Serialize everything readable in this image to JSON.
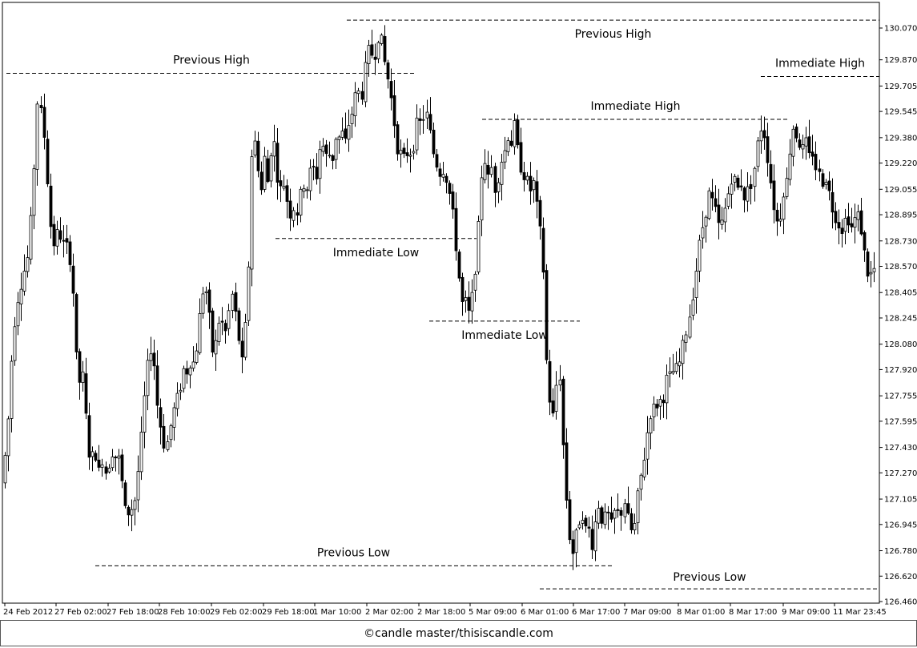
{
  "footer": {
    "copyright": "©candle master/thisiscandle.com"
  },
  "chart_data": {
    "type": "candlestick",
    "ylim": [
      126.4,
      130.14
    ],
    "y_ticks": [
      "130.070",
      "129.870",
      "129.705",
      "129.545",
      "129.380",
      "129.220",
      "129.055",
      "128.895",
      "128.730",
      "128.570",
      "128.405",
      "128.245",
      "128.080",
      "127.920",
      "127.755",
      "127.595",
      "127.430",
      "127.270",
      "127.105",
      "126.945",
      "126.780",
      "126.620",
      "126.460"
    ],
    "x_ticks": [
      "24 Feb 2012",
      "27 Feb 02:00",
      "27 Feb 18:00",
      "28 Feb 10:00",
      "29 Feb 02:00",
      "29 Feb 18:00",
      "1 Mar 10:00",
      "2 Mar 02:00",
      "2 Mar 18:00",
      "5 Mar 09:00",
      "6 Mar 01:00",
      "6 Mar 17:00",
      "7 Mar 09:00",
      "8 Mar 01:00",
      "8 Mar 17:00",
      "9 Mar 09:00",
      "11 Mar 23:45"
    ],
    "levels": [
      {
        "label": "Previous High",
        "value": 129.785,
        "x_from": "24 Feb 2012",
        "x_to": "2 Mar 18:00"
      },
      {
        "label": "Previous High",
        "value": 130.12,
        "x_from": "2 Mar 02:00",
        "x_to": "11 Mar 23:45"
      },
      {
        "label": "Immediate High",
        "value": 129.495,
        "x_from": "5 Mar 09:00",
        "x_to": "9 Mar 09:00"
      },
      {
        "label": "Immediate High",
        "value": 129.765,
        "x_from": "9 Mar 09:00",
        "x_to": "11 Mar 23:45"
      },
      {
        "label": "Immediate Low",
        "value": 128.745,
        "x_from": "29 Feb 18:00",
        "x_to": "5 Mar 09:00"
      },
      {
        "label": "Immediate Low",
        "value": 128.225,
        "x_from": "2 Mar 18:00",
        "x_to": "6 Mar 01:00"
      },
      {
        "label": "Previous Low",
        "value": 126.685,
        "x_from": "27 Feb 02:00",
        "x_to": "7 Mar 09:00"
      },
      {
        "label": "Previous Low",
        "value": 126.54,
        "x_from": "6 Mar 01:00",
        "x_to": "11 Mar 23:45"
      }
    ],
    "series_path": [
      [
        0,
        127.25
      ],
      [
        7,
        127.2
      ],
      [
        14,
        127.6
      ],
      [
        20,
        128.15
      ],
      [
        27,
        128.4
      ],
      [
        33,
        128.52
      ],
      [
        40,
        128.65
      ],
      [
        45,
        129.05
      ],
      [
        49,
        129.45
      ],
      [
        52,
        129.75
      ],
      [
        55,
        129.5
      ],
      [
        60,
        129.35
      ],
      [
        64,
        129.0
      ],
      [
        68,
        128.75
      ],
      [
        72,
        128.7
      ],
      [
        76,
        128.8
      ],
      [
        80,
        128.75
      ],
      [
        85,
        128.68
      ],
      [
        89,
        128.7
      ],
      [
        93,
        128.55
      ],
      [
        96,
        128.35
      ],
      [
        99,
        128.0
      ],
      [
        102,
        127.8
      ],
      [
        106,
        127.95
      ],
      [
        110,
        127.7
      ],
      [
        114,
        127.45
      ],
      [
        118,
        127.3
      ],
      [
        122,
        127.5
      ],
      [
        126,
        127.2
      ],
      [
        130,
        127.4
      ],
      [
        134,
        127.3
      ],
      [
        138,
        127.25
      ],
      [
        142,
        127.45
      ],
      [
        146,
        127.35
      ],
      [
        150,
        127.4
      ],
      [
        154,
        127.3
      ],
      [
        158,
        127.1
      ],
      [
        162,
        126.95
      ],
      [
        166,
        127.1
      ],
      [
        170,
        127.0
      ],
      [
        174,
        127.2
      ],
      [
        178,
        127.35
      ],
      [
        182,
        127.6
      ],
      [
        186,
        127.85
      ],
      [
        190,
        128.0
      ],
      [
        194,
        128.1
      ],
      [
        198,
        127.85
      ],
      [
        202,
        127.6
      ],
      [
        206,
        127.55
      ],
      [
        210,
        127.4
      ],
      [
        214,
        127.5
      ],
      [
        218,
        127.6
      ],
      [
        222,
        127.7
      ],
      [
        226,
        127.75
      ],
      [
        230,
        127.85
      ],
      [
        234,
        127.95
      ],
      [
        238,
        127.9
      ],
      [
        242,
        128.0
      ],
      [
        246,
        127.95
      ],
      [
        250,
        128.1
      ],
      [
        254,
        128.3
      ],
      [
        258,
        128.45
      ],
      [
        262,
        128.4
      ],
      [
        266,
        128.2
      ],
      [
        270,
        128.0
      ],
      [
        274,
        128.1
      ],
      [
        278,
        128.25
      ],
      [
        282,
        128.2
      ],
      [
        286,
        128.15
      ],
      [
        290,
        128.3
      ],
      [
        294,
        128.4
      ],
      [
        298,
        128.25
      ],
      [
        302,
        128.1
      ],
      [
        306,
        127.95
      ],
      [
        310,
        128.2
      ],
      [
        314,
        128.6
      ],
      [
        318,
        129.3
      ],
      [
        322,
        129.35
      ],
      [
        326,
        129.2
      ],
      [
        330,
        129.05
      ],
      [
        334,
        129.25
      ],
      [
        338,
        129.1
      ],
      [
        342,
        129.3
      ],
      [
        346,
        129.35
      ],
      [
        350,
        129.15
      ],
      [
        354,
        129.05
      ],
      [
        358,
        129.1
      ],
      [
        362,
        129.0
      ],
      [
        366,
        128.9
      ],
      [
        370,
        128.95
      ],
      [
        374,
        128.9
      ],
      [
        378,
        129.0
      ],
      [
        382,
        129.1
      ],
      [
        386,
        129.05
      ],
      [
        390,
        129.15
      ],
      [
        394,
        129.2
      ],
      [
        398,
        129.1
      ],
      [
        402,
        129.3
      ],
      [
        406,
        129.35
      ],
      [
        410,
        129.25
      ],
      [
        414,
        129.3
      ],
      [
        418,
        129.2
      ],
      [
        422,
        129.4
      ],
      [
        426,
        129.35
      ],
      [
        430,
        129.45
      ],
      [
        434,
        129.3
      ],
      [
        438,
        129.45
      ],
      [
        442,
        129.5
      ],
      [
        446,
        129.6
      ],
      [
        450,
        129.7
      ],
      [
        454,
        129.6
      ],
      [
        458,
        129.75
      ],
      [
        462,
        129.9
      ],
      [
        466,
        129.95
      ],
      [
        470,
        129.85
      ],
      [
        474,
        130.0
      ],
      [
        478,
        130.05
      ],
      [
        482,
        129.9
      ],
      [
        486,
        129.8
      ],
      [
        490,
        129.7
      ],
      [
        494,
        129.55
      ],
      [
        498,
        129.4
      ],
      [
        502,
        129.25
      ],
      [
        506,
        129.3
      ],
      [
        510,
        129.2
      ],
      [
        514,
        129.35
      ],
      [
        518,
        129.25
      ],
      [
        522,
        129.4
      ],
      [
        526,
        129.5
      ],
      [
        530,
        129.45
      ],
      [
        534,
        129.55
      ],
      [
        538,
        129.5
      ],
      [
        542,
        129.35
      ],
      [
        546,
        129.25
      ],
      [
        550,
        129.2
      ],
      [
        554,
        129.15
      ],
      [
        558,
        129.2
      ],
      [
        562,
        129.1
      ],
      [
        566,
        129.0
      ],
      [
        570,
        128.85
      ],
      [
        574,
        128.65
      ],
      [
        578,
        128.45
      ],
      [
        582,
        128.3
      ],
      [
        586,
        128.35
      ],
      [
        590,
        128.25
      ],
      [
        594,
        128.4
      ],
      [
        598,
        128.6
      ],
      [
        602,
        128.85
      ],
      [
        606,
        129.2
      ],
      [
        610,
        129.25
      ],
      [
        614,
        129.1
      ],
      [
        618,
        129.2
      ],
      [
        622,
        129.05
      ],
      [
        626,
        129.15
      ],
      [
        630,
        129.25
      ],
      [
        634,
        129.3
      ],
      [
        638,
        129.4
      ],
      [
        642,
        129.35
      ],
      [
        646,
        129.45
      ],
      [
        650,
        129.3
      ],
      [
        654,
        129.2
      ],
      [
        658,
        129.15
      ],
      [
        662,
        129.1
      ],
      [
        666,
        129.05
      ],
      [
        670,
        129.1
      ],
      [
        674,
        128.95
      ],
      [
        678,
        128.8
      ],
      [
        682,
        128.6
      ],
      [
        686,
        128.0
      ],
      [
        690,
        127.75
      ],
      [
        694,
        127.6
      ],
      [
        698,
        127.8
      ],
      [
        702,
        127.95
      ],
      [
        706,
        127.5
      ],
      [
        710,
        127.15
      ],
      [
        714,
        126.9
      ],
      [
        718,
        126.75
      ],
      [
        722,
        126.85
      ],
      [
        726,
        126.95
      ],
      [
        730,
        127.05
      ],
      [
        734,
        126.9
      ],
      [
        738,
        126.95
      ],
      [
        742,
        126.8
      ],
      [
        746,
        126.9
      ],
      [
        750,
        127.1
      ],
      [
        754,
        127.0
      ],
      [
        758,
        126.95
      ],
      [
        762,
        127.05
      ],
      [
        766,
        126.9
      ],
      [
        770,
        127.0
      ],
      [
        774,
        127.05
      ],
      [
        778,
        126.95
      ],
      [
        782,
        127.15
      ],
      [
        786,
        127.0
      ],
      [
        790,
        126.95
      ],
      [
        794,
        126.85
      ],
      [
        798,
        127.05
      ],
      [
        802,
        127.2
      ],
      [
        806,
        127.3
      ],
      [
        810,
        127.45
      ],
      [
        814,
        127.6
      ],
      [
        818,
        127.7
      ],
      [
        822,
        127.65
      ],
      [
        826,
        127.75
      ],
      [
        830,
        127.7
      ],
      [
        834,
        127.8
      ],
      [
        838,
        127.9
      ],
      [
        842,
        127.85
      ],
      [
        846,
        127.95
      ],
      [
        850,
        127.9
      ],
      [
        854,
        128.0
      ],
      [
        858,
        128.1
      ],
      [
        862,
        128.2
      ],
      [
        866,
        128.3
      ],
      [
        870,
        128.45
      ],
      [
        874,
        128.6
      ],
      [
        878,
        128.75
      ],
      [
        882,
        128.85
      ],
      [
        886,
        128.95
      ],
      [
        890,
        129.05
      ],
      [
        894,
        128.95
      ],
      [
        898,
        128.9
      ],
      [
        902,
        128.8
      ],
      [
        906,
        128.85
      ],
      [
        910,
        128.95
      ],
      [
        914,
        129.05
      ],
      [
        918,
        129.15
      ],
      [
        922,
        129.1
      ],
      [
        926,
        129.05
      ],
      [
        930,
        129.1
      ],
      [
        934,
        129.0
      ],
      [
        938,
        129.05
      ],
      [
        942,
        129.1
      ],
      [
        946,
        129.2
      ],
      [
        950,
        129.35
      ],
      [
        954,
        129.45
      ],
      [
        958,
        129.4
      ],
      [
        962,
        129.25
      ],
      [
        966,
        129.1
      ],
      [
        970,
        128.95
      ],
      [
        974,
        128.85
      ],
      [
        978,
        128.9
      ],
      [
        982,
        129.05
      ],
      [
        986,
        129.1
      ],
      [
        990,
        129.3
      ],
      [
        994,
        129.45
      ],
      [
        998,
        129.4
      ],
      [
        1002,
        129.35
      ],
      [
        1006,
        129.3
      ],
      [
        1010,
        129.35
      ],
      [
        1014,
        129.25
      ],
      [
        1018,
        129.3
      ],
      [
        1022,
        129.2
      ],
      [
        1026,
        129.15
      ],
      [
        1030,
        129.1
      ],
      [
        1034,
        129.15
      ],
      [
        1038,
        129.05
      ],
      [
        1042,
        128.95
      ],
      [
        1046,
        128.9
      ],
      [
        1050,
        128.85
      ],
      [
        1054,
        128.8
      ],
      [
        1058,
        128.85
      ],
      [
        1062,
        128.9
      ],
      [
        1066,
        128.8
      ],
      [
        1070,
        128.85
      ],
      [
        1074,
        128.9
      ],
      [
        1078,
        128.85
      ],
      [
        1082,
        128.7
      ],
      [
        1086,
        128.55
      ],
      [
        1090,
        128.5
      ],
      [
        1094,
        128.55
      ]
    ],
    "title": "",
    "xlabel": "",
    "ylabel": "",
    "grid": false,
    "legend": "none"
  }
}
